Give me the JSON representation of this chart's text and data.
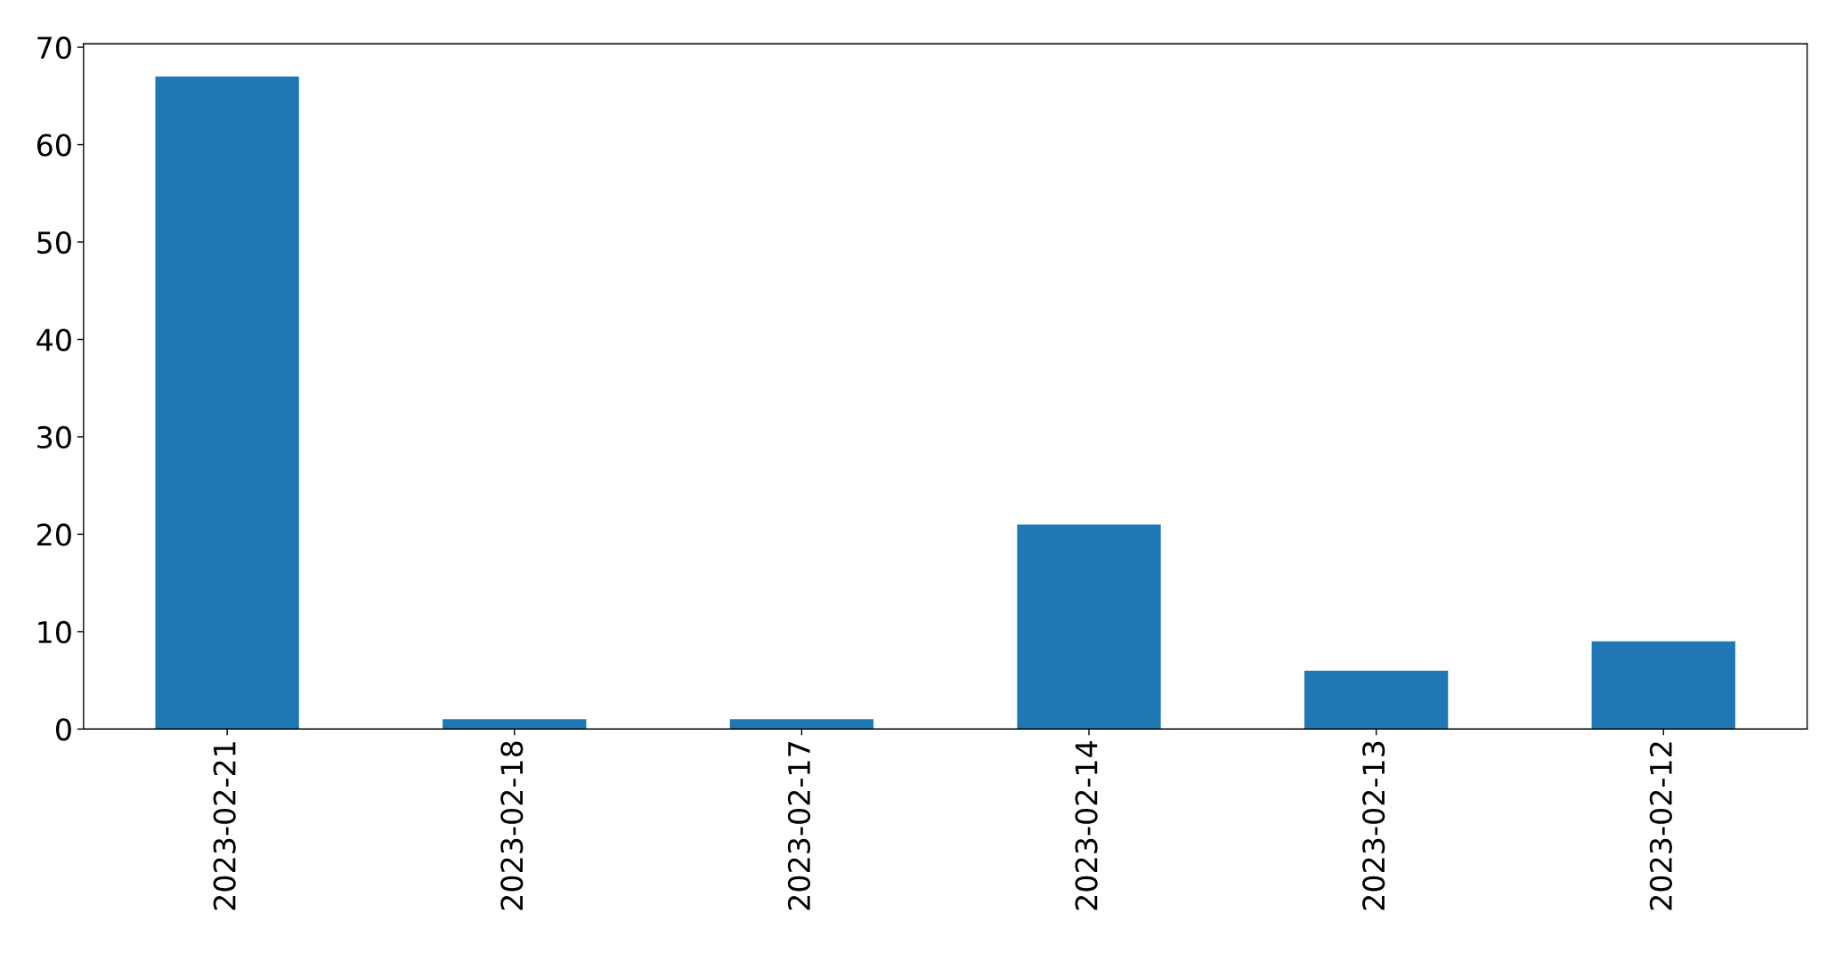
{
  "chart_data": {
    "type": "bar",
    "categories": [
      "2023-02-21",
      "2023-02-18",
      "2023-02-17",
      "2023-02-14",
      "2023-02-13",
      "2023-02-12"
    ],
    "values": [
      67,
      1,
      1,
      21,
      6,
      9
    ],
    "color": "#1f77b4",
    "ylim": [
      0,
      70.35
    ],
    "yticks": [
      0,
      10,
      20,
      30,
      40,
      50,
      60,
      70
    ],
    "grid": false,
    "legend": false
  }
}
